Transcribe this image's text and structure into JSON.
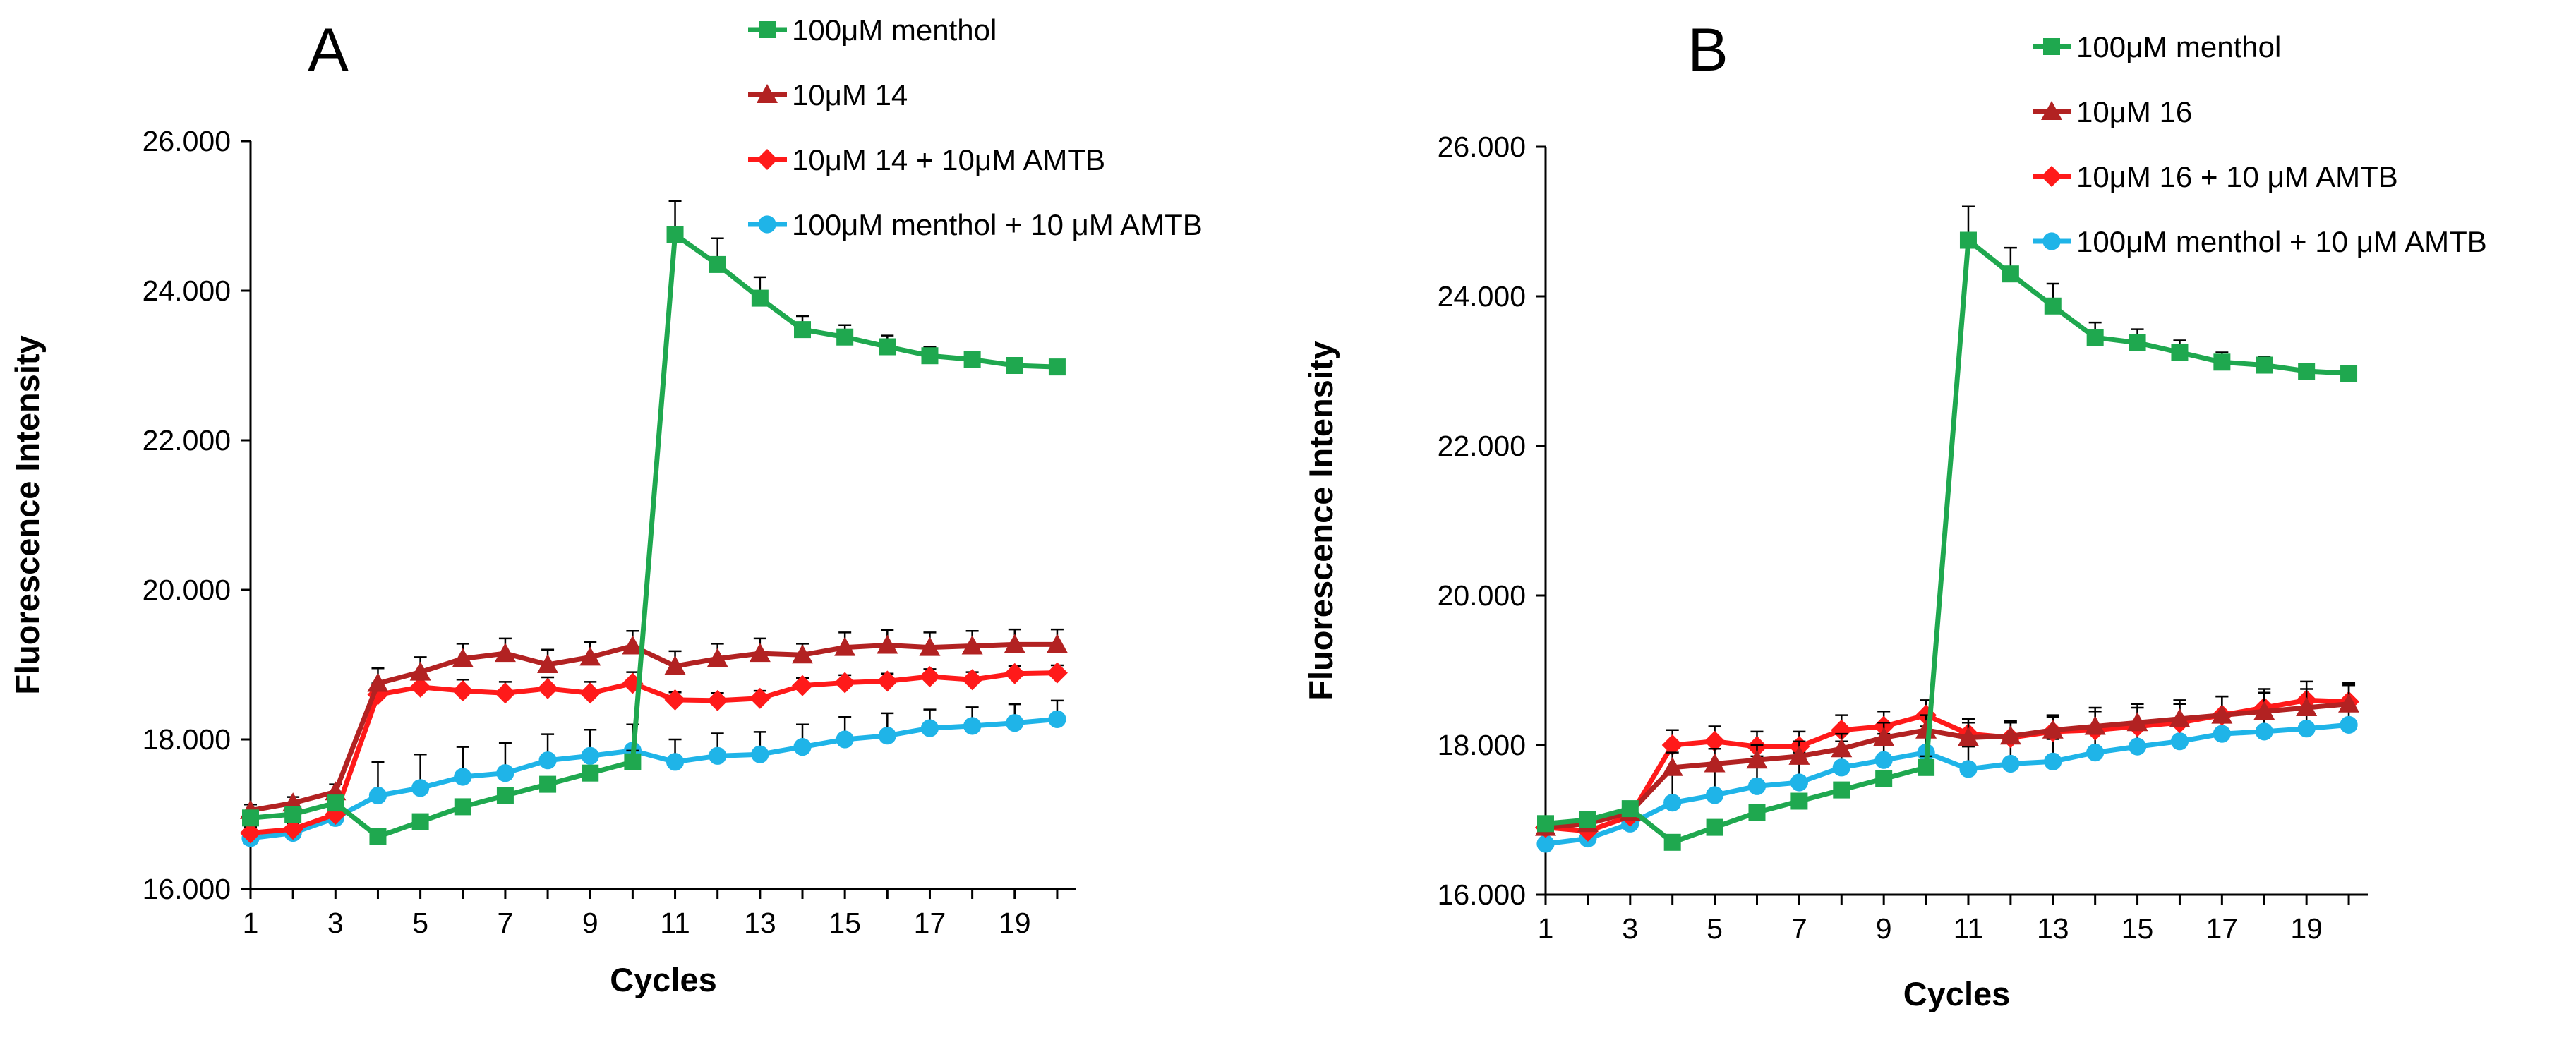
{
  "chart_data": [
    {
      "type": "line",
      "panel_label": "A",
      "xlabel": "Cycles",
      "ylabel": "Fluorescence Intensity",
      "xlim": [
        1,
        20
      ],
      "ylim": [
        16000,
        26000
      ],
      "x_tick_labels": [
        "1",
        "3",
        "5",
        "7",
        "9",
        "11",
        "13",
        "15",
        "17",
        "19"
      ],
      "y_tick_labels": [
        "16.000",
        "18.000",
        "20.000",
        "22.000",
        "24.000",
        "26.000"
      ],
      "x": [
        1,
        2,
        3,
        4,
        5,
        6,
        7,
        8,
        9,
        10,
        11,
        12,
        13,
        14,
        15,
        16,
        17,
        18,
        19,
        20
      ],
      "grid": false,
      "legend_position": "top-right",
      "series": [
        {
          "name": "100μM menthol",
          "color": "#1fa84f",
          "marker": "square",
          "values": [
            16950,
            17000,
            17150,
            16700,
            16900,
            17100,
            17250,
            17400,
            17550,
            17700,
            24750,
            24350,
            23900,
            23480,
            23380,
            23250,
            23130,
            23080,
            23000,
            22980
          ],
          "errors": [
            60,
            60,
            70,
            80,
            80,
            80,
            80,
            80,
            80,
            150,
            450,
            350,
            280,
            180,
            160,
            150,
            120,
            100,
            80,
            80
          ]
        },
        {
          "name": "10μM 14",
          "color": "#b22222",
          "marker": "triangle",
          "values": [
            17050,
            17150,
            17300,
            18750,
            18900,
            19080,
            19150,
            19000,
            19100,
            19250,
            18980,
            19080,
            19150,
            19130,
            19230,
            19260,
            19230,
            19250,
            19270,
            19270
          ],
          "errors": [
            80,
            80,
            100,
            200,
            200,
            200,
            200,
            200,
            200,
            200,
            200,
            200,
            200,
            150,
            200,
            200,
            200,
            200,
            200,
            200
          ]
        },
        {
          "name": "10μM 14 + 10μM AMTB",
          "color": "#ff1a1a",
          "marker": "diamond",
          "values": [
            16750,
            16800,
            17000,
            18600,
            18700,
            18650,
            18620,
            18680,
            18620,
            18750,
            18530,
            18520,
            18550,
            18720,
            18760,
            18780,
            18840,
            18800,
            18880,
            18890
          ],
          "errors": [
            80,
            80,
            100,
            150,
            150,
            150,
            150,
            150,
            150,
            150,
            100,
            100,
            100,
            100,
            100,
            100,
            100,
            100,
            100,
            100
          ]
        },
        {
          "name": "100μM menthol + 10 μM AMTB",
          "color": "#1fb4e8",
          "marker": "circle",
          "values": [
            16680,
            16750,
            16950,
            17250,
            17350,
            17500,
            17550,
            17720,
            17780,
            17850,
            17700,
            17780,
            17800,
            17900,
            18000,
            18050,
            18150,
            18180,
            18220,
            18270
          ],
          "errors": [
            50,
            50,
            100,
            450,
            450,
            400,
            400,
            350,
            350,
            350,
            300,
            300,
            300,
            300,
            300,
            300,
            250,
            250,
            250,
            250
          ]
        }
      ]
    },
    {
      "type": "line",
      "panel_label": "B",
      "xlabel": "Cycles",
      "ylabel": "Fluorescence Intensity",
      "xlim": [
        1,
        20
      ],
      "ylim": [
        16000,
        26000
      ],
      "x_tick_labels": [
        "1",
        "3",
        "5",
        "7",
        "9",
        "11",
        "13",
        "15",
        "17",
        "19"
      ],
      "y_tick_labels": [
        "16.000",
        "18.000",
        "20.000",
        "22.000",
        "24.000",
        "26.000"
      ],
      "x": [
        1,
        2,
        3,
        4,
        5,
        6,
        7,
        8,
        9,
        10,
        11,
        12,
        13,
        14,
        15,
        16,
        17,
        18,
        19,
        20
      ],
      "grid": false,
      "legend_position": "top-right",
      "series": [
        {
          "name": "100μM menthol",
          "color": "#1fa84f",
          "marker": "square",
          "values": [
            16950,
            17000,
            17150,
            16700,
            16900,
            17100,
            17250,
            17400,
            17550,
            17700,
            24750,
            24300,
            23870,
            23450,
            23380,
            23250,
            23120,
            23080,
            23000,
            22970
          ],
          "errors": [
            60,
            60,
            70,
            80,
            80,
            80,
            80,
            80,
            80,
            150,
            450,
            350,
            300,
            200,
            180,
            160,
            130,
            110,
            90,
            90
          ]
        },
        {
          "name": "10μM 16",
          "color": "#b22222",
          "marker": "triangle",
          "values": [
            16900,
            16950,
            17100,
            17700,
            17750,
            17800,
            17850,
            17950,
            18100,
            18200,
            18100,
            18120,
            18200,
            18250,
            18300,
            18350,
            18400,
            18450,
            18500,
            18550
          ],
          "errors": [
            80,
            80,
            100,
            200,
            200,
            200,
            200,
            200,
            200,
            200,
            200,
            200,
            200,
            250,
            250,
            250,
            250,
            250,
            250,
            250
          ]
        },
        {
          "name": "10μM 16 + 10 μM AMTB",
          "color": "#ff1a1a",
          "marker": "diamond",
          "values": [
            16900,
            16850,
            17050,
            18000,
            18050,
            17980,
            17980,
            18200,
            18250,
            18400,
            18150,
            18100,
            18180,
            18200,
            18250,
            18300,
            18400,
            18500,
            18600,
            18580
          ],
          "errors": [
            80,
            80,
            100,
            200,
            200,
            200,
            200,
            200,
            200,
            200,
            200,
            200,
            200,
            250,
            250,
            250,
            250,
            250,
            250,
            250
          ]
        },
        {
          "name": "100μM menthol + 10 μM AMTB",
          "color": "#1fb4e8",
          "marker": "circle",
          "values": [
            16680,
            16750,
            16950,
            17230,
            17330,
            17450,
            17500,
            17700,
            17800,
            17900,
            17680,
            17750,
            17780,
            17900,
            17980,
            18050,
            18150,
            18180,
            18220,
            18270
          ],
          "errors": [
            50,
            50,
            100,
            400,
            400,
            400,
            400,
            350,
            350,
            350,
            300,
            300,
            300,
            300,
            300,
            300,
            250,
            250,
            250,
            250
          ]
        }
      ]
    }
  ]
}
